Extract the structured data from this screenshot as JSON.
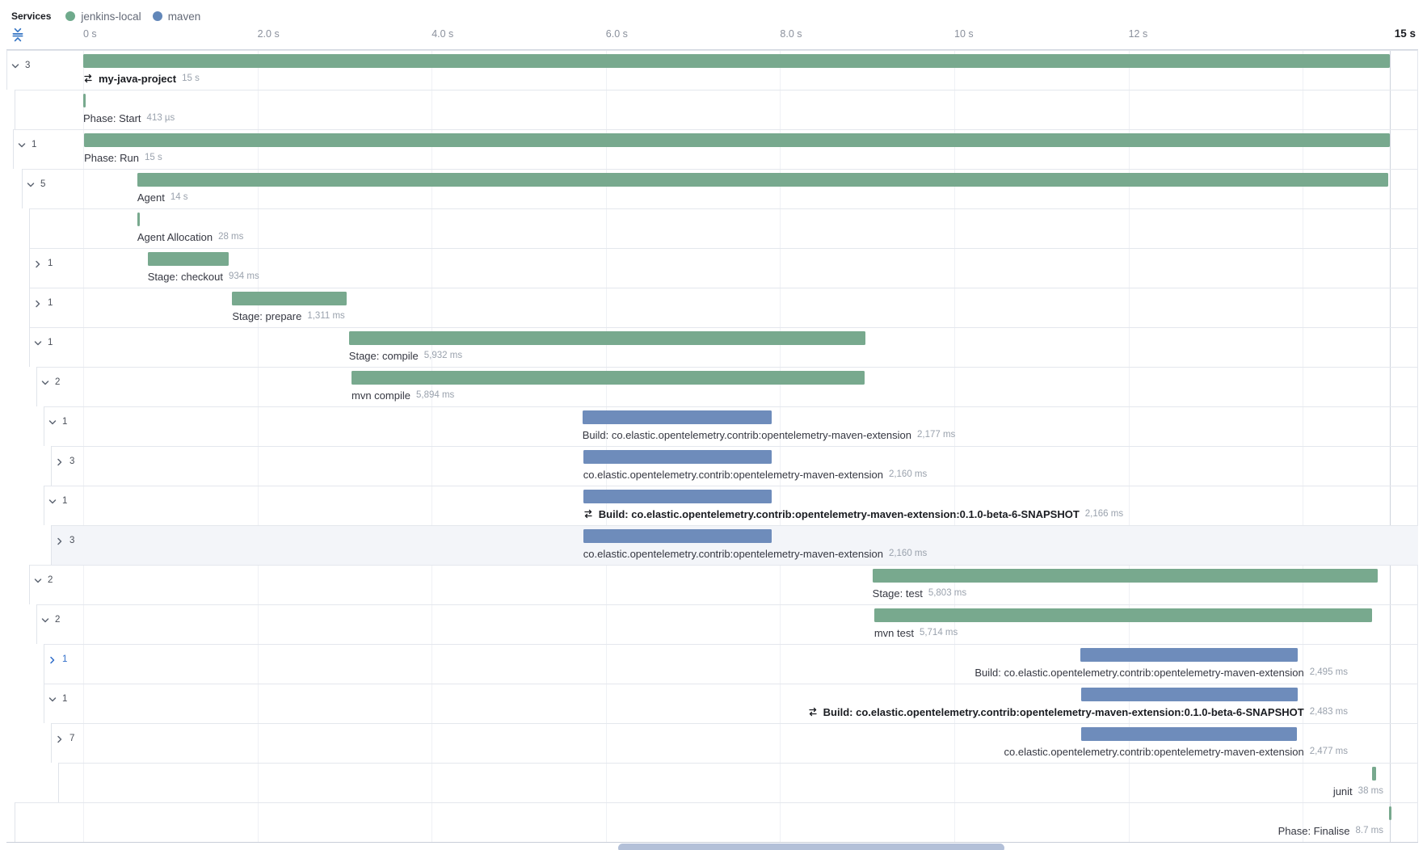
{
  "colors": {
    "jenkins": "#78a98e",
    "maven": "#6e8cbb",
    "legend_jenkins_dot": "#6faa8c",
    "legend_maven_dot": "#6287b9",
    "scrollbar": "#b3c0d8",
    "fold_icon": "#3575c4",
    "blue_twisty": "#2f6dc9"
  },
  "legend": {
    "title": "Services",
    "items": [
      {
        "label": "jenkins-local",
        "service": "jenkins"
      },
      {
        "label": "maven",
        "service": "maven"
      }
    ]
  },
  "axis": {
    "ticks": [
      {
        "label": "0 s",
        "s": 0
      },
      {
        "label": "2.0 s",
        "s": 2
      },
      {
        "label": "4.0 s",
        "s": 4
      },
      {
        "label": "6.0 s",
        "s": 6
      },
      {
        "label": "8.0 s",
        "s": 8
      },
      {
        "label": "10 s",
        "s": 10
      },
      {
        "label": "12 s",
        "s": 12
      }
    ],
    "gridline_seconds": [
      0,
      2,
      4,
      6,
      8,
      10,
      12,
      14
    ],
    "end_label": "15 s",
    "total_s": 15
  },
  "chart_data": {
    "type": "waterfall-trace",
    "rows": [
      {
        "name": "my-java-project",
        "duration": "15 s",
        "start_s": 0,
        "dur_s": 15,
        "service": "jenkins",
        "bold": true,
        "icon": true,
        "indent": 8,
        "chevron": "down",
        "count": "3"
      },
      {
        "name": "Phase: Start",
        "duration": "413 µs",
        "start_s": 0,
        "dur_s": 0.000413,
        "service": "jenkins",
        "bold": false,
        "icon": false,
        "indent": 18,
        "chevron": null,
        "count": null
      },
      {
        "name": "Phase: Run",
        "duration": "15 s",
        "start_s": 0.01,
        "dur_s": 14.99,
        "service": "jenkins",
        "bold": false,
        "icon": false,
        "indent": 16,
        "chevron": "down",
        "count": "1"
      },
      {
        "name": "Agent",
        "duration": "14 s",
        "start_s": 0.62,
        "dur_s": 14.36,
        "service": "jenkins",
        "bold": false,
        "icon": false,
        "indent": 27,
        "chevron": "down",
        "count": "5"
      },
      {
        "name": "Agent Allocation",
        "duration": "28 ms",
        "start_s": 0.62,
        "dur_s": 0.028,
        "service": "jenkins",
        "bold": false,
        "icon": false,
        "indent": 36,
        "chevron": null,
        "count": null
      },
      {
        "name": "Stage: checkout",
        "duration": "934 ms",
        "start_s": 0.74,
        "dur_s": 0.934,
        "service": "jenkins",
        "bold": false,
        "icon": false,
        "indent": 36,
        "chevron": "right",
        "count": "1"
      },
      {
        "name": "Stage: prepare",
        "duration": "1,311 ms",
        "start_s": 1.71,
        "dur_s": 1.311,
        "service": "jenkins",
        "bold": false,
        "icon": false,
        "indent": 36,
        "chevron": "right",
        "count": "1"
      },
      {
        "name": "Stage: compile",
        "duration": "5,932 ms",
        "start_s": 3.05,
        "dur_s": 5.932,
        "service": "jenkins",
        "bold": false,
        "icon": false,
        "indent": 36,
        "chevron": "down",
        "count": "1"
      },
      {
        "name": "mvn compile",
        "duration": "5,894 ms",
        "start_s": 3.08,
        "dur_s": 5.894,
        "service": "jenkins",
        "bold": false,
        "icon": false,
        "indent": 45,
        "chevron": "down",
        "count": "2"
      },
      {
        "name": "Build: co.elastic.opentelemetry.contrib:opentelemetry-maven-extension",
        "duration": "2,177 ms",
        "start_s": 5.73,
        "dur_s": 2.177,
        "service": "maven",
        "bold": false,
        "icon": false,
        "indent": 54,
        "chevron": "down",
        "count": "1"
      },
      {
        "name": "co.elastic.opentelemetry.contrib:opentelemetry-maven-extension",
        "duration": "2,160 ms",
        "start_s": 5.74,
        "dur_s": 2.16,
        "service": "maven",
        "bold": false,
        "icon": false,
        "indent": 63,
        "chevron": "right",
        "count": "3"
      },
      {
        "name": "Build: co.elastic.opentelemetry.contrib:opentelemetry-maven-extension:0.1.0-beta-6-SNAPSHOT",
        "duration": "2,166 ms",
        "start_s": 5.74,
        "dur_s": 2.166,
        "service": "maven",
        "bold": true,
        "icon": true,
        "indent": 54,
        "chevron": "down",
        "count": "1"
      },
      {
        "name": "co.elastic.opentelemetry.contrib:opentelemetry-maven-extension",
        "duration": "2,160 ms",
        "start_s": 5.74,
        "dur_s": 2.16,
        "service": "maven",
        "bold": false,
        "icon": false,
        "indent": 63,
        "chevron": "right",
        "count": "3",
        "highlighted": true
      },
      {
        "name": "Stage: test",
        "duration": "5,803 ms",
        "start_s": 9.06,
        "dur_s": 5.803,
        "service": "jenkins",
        "bold": false,
        "icon": false,
        "indent": 36,
        "chevron": "down",
        "count": "2"
      },
      {
        "name": "mvn test",
        "duration": "5,714 ms",
        "start_s": 9.08,
        "dur_s": 5.714,
        "service": "jenkins",
        "bold": false,
        "icon": false,
        "indent": 45,
        "chevron": "down",
        "count": "2"
      },
      {
        "name": "Build: co.elastic.opentelemetry.contrib:opentelemetry-maven-extension",
        "duration": "2,495 ms",
        "start_s": 11.45,
        "dur_s": 2.495,
        "service": "maven",
        "bold": false,
        "icon": false,
        "indent": 54,
        "chevron": "right",
        "count": "1",
        "twisty_blue": true,
        "label_align": "right",
        "label_rx": 1668
      },
      {
        "name": "Build: co.elastic.opentelemetry.contrib:opentelemetry-maven-extension:0.1.0-beta-6-SNAPSHOT",
        "duration": "2,483 ms",
        "start_s": 11.46,
        "dur_s": 2.483,
        "service": "maven",
        "bold": true,
        "icon": true,
        "indent": 54,
        "chevron": "down",
        "count": "1",
        "label_align": "right",
        "label_rx": 1668
      },
      {
        "name": "co.elastic.opentelemetry.contrib:opentelemetry-maven-extension",
        "duration": "2,477 ms",
        "start_s": 11.46,
        "dur_s": 2.477,
        "service": "maven",
        "bold": false,
        "icon": false,
        "indent": 63,
        "chevron": "right",
        "count": "7",
        "label_align": "right",
        "label_rx": 1668
      },
      {
        "name": "junit",
        "duration": "38 ms",
        "start_s": 14.8,
        "dur_s": 0.038,
        "service": "jenkins",
        "bold": false,
        "icon": false,
        "indent": 72,
        "chevron": null,
        "count": null,
        "label_align": "right",
        "label_rx": 1712
      },
      {
        "name": "Phase: Finalise",
        "duration": "8.7 ms",
        "start_s": 14.99,
        "dur_s": 0.0087,
        "service": "jenkins",
        "bold": false,
        "icon": false,
        "indent": 18,
        "chevron": null,
        "count": null,
        "label_align": "right",
        "label_rx": 1712
      }
    ]
  }
}
